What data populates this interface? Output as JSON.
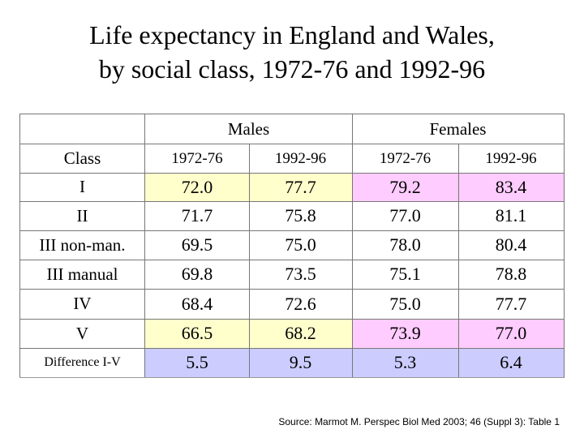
{
  "title_line1": "Life expectancy in England and Wales,",
  "title_line2": "by social class, 1972-76 and 1992-96",
  "table": {
    "group_headers": [
      "Males",
      "Females"
    ],
    "column_headers": [
      "Class",
      "1972-76",
      "1992-96",
      "1972-76",
      "1992-96"
    ],
    "rows": [
      {
        "label": "I",
        "values": [
          "72.0",
          "77.7",
          "79.2",
          "83.4"
        ]
      },
      {
        "label": "II",
        "values": [
          "71.7",
          "75.8",
          "77.0",
          "81.1"
        ]
      },
      {
        "label": "III non-man.",
        "values": [
          "69.5",
          "75.0",
          "78.0",
          "80.4"
        ]
      },
      {
        "label": "III manual",
        "values": [
          "69.8",
          "73.5",
          "75.1",
          "78.8"
        ]
      },
      {
        "label": "IV",
        "values": [
          "68.4",
          "72.6",
          "75.0",
          "77.7"
        ]
      },
      {
        "label": "V",
        "values": [
          "66.5",
          "68.2",
          "73.9",
          "77.0"
        ]
      },
      {
        "label": "Difference I-V",
        "values": [
          "5.5",
          "9.5",
          "5.3",
          "6.4"
        ]
      }
    ]
  },
  "colors": {
    "males_highlight": "#ffffcc",
    "females_highlight": "#ffccff",
    "difference_row": "#ccccff"
  },
  "source": "Source: Marmot M. Perspec Biol Med 2003; 46 (Suppl 3): Table 1"
}
